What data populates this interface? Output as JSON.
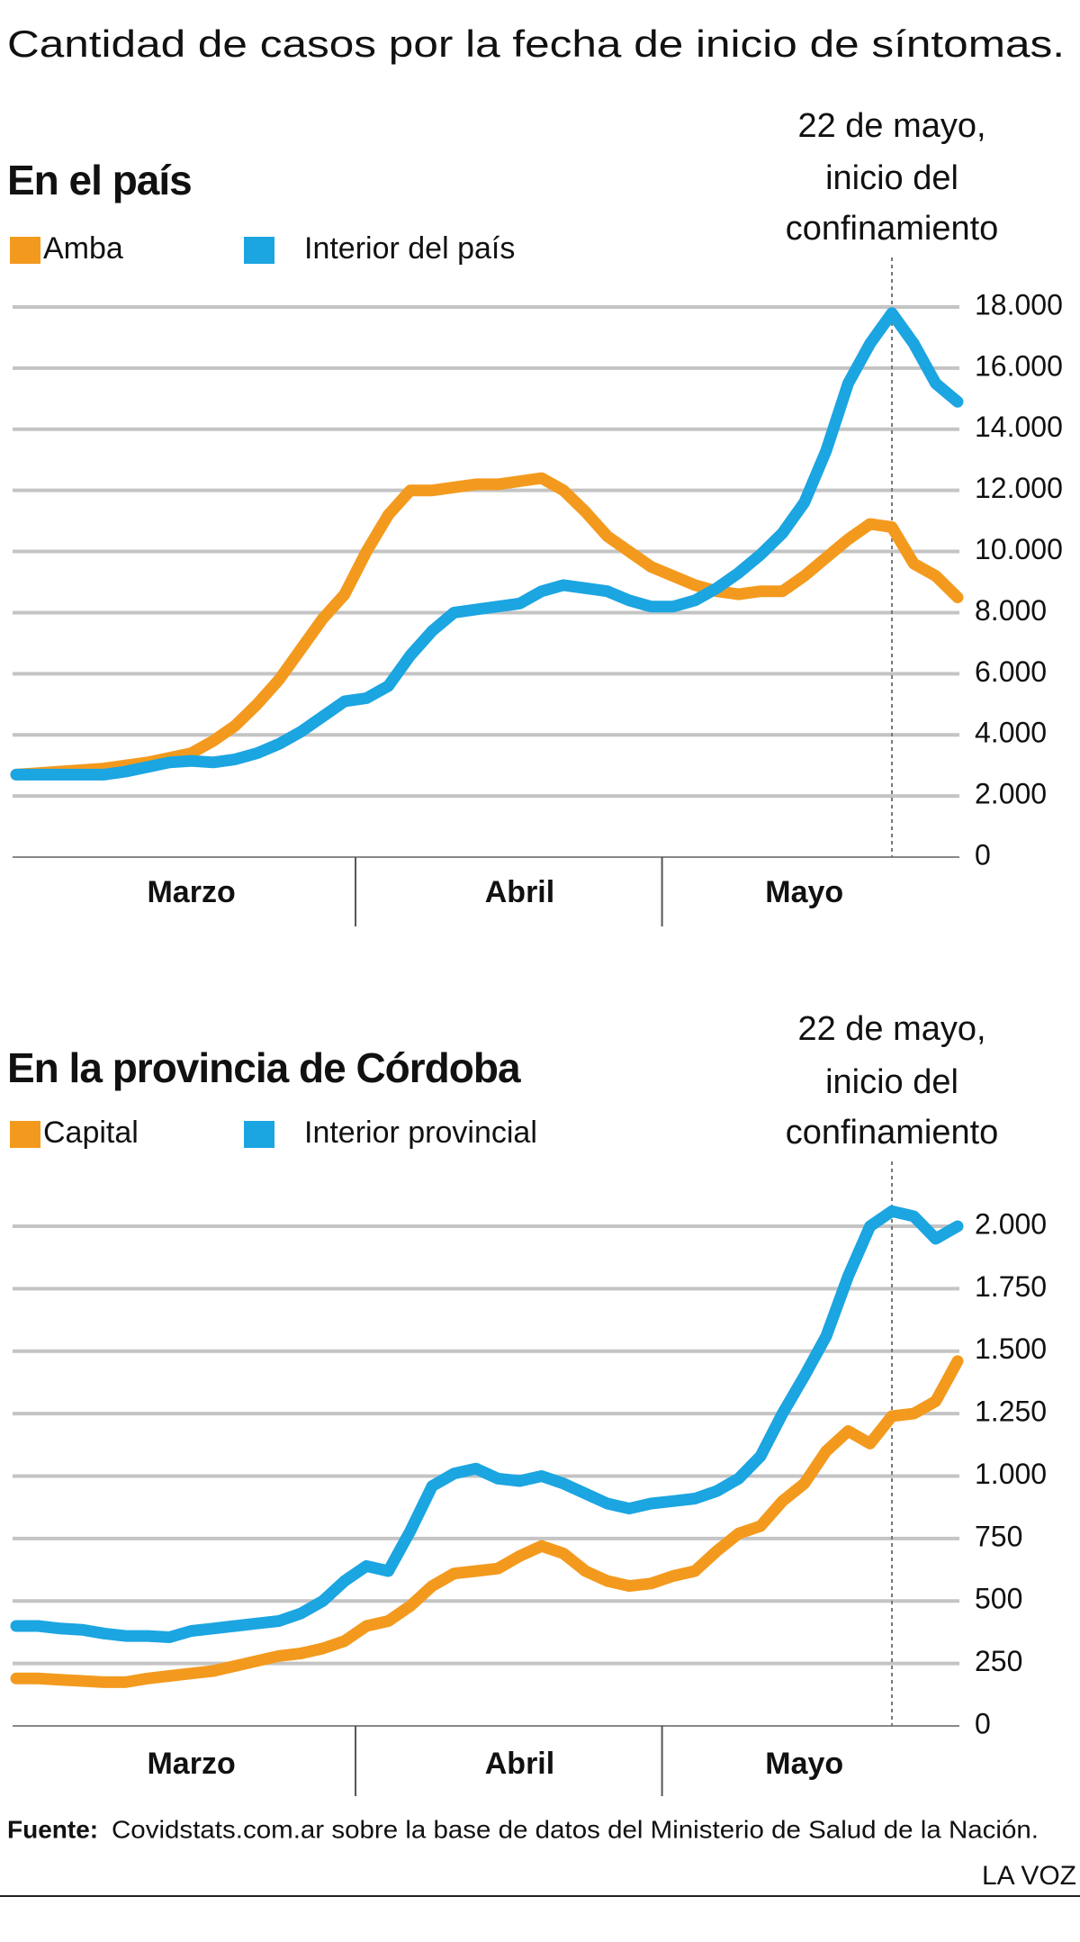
{
  "title": "Cantidad de casos por la fecha de inicio de síntomas.",
  "source_label": "Fuente:",
  "source_text": "Covidstats.com.ar sobre la base de datos del Ministerio de Salud de la Nación.",
  "credit": "LA VOZ",
  "chart_data": [
    {
      "type": "line",
      "title": "En el país",
      "categories": [
        null,
        null,
        null,
        null,
        null,
        null,
        null,
        null,
        "Marzo",
        null,
        null,
        null,
        null,
        null,
        null,
        null,
        null,
        null,
        null,
        null,
        null,
        null,
        null,
        "Abril",
        null,
        null,
        null,
        null,
        null,
        null,
        null,
        null,
        null,
        null,
        null,
        null,
        "Mayo",
        null,
        null,
        null,
        null,
        null,
        null,
        null
      ],
      "series": [
        {
          "name": "Amba",
          "color": "#f39a1e",
          "values": [
            2700,
            2750,
            2800,
            2850,
            2900,
            3000,
            3100,
            3250,
            3400,
            3800,
            4300,
            5000,
            5800,
            6800,
            7800,
            8600,
            10000,
            11200,
            12000,
            12000,
            12100,
            12200,
            12200,
            12300,
            12400,
            12000,
            11300,
            10500,
            10000,
            9500,
            9200,
            8900,
            8700,
            8600,
            8700,
            8700,
            9200,
            9800,
            10400,
            10900,
            10800,
            9600,
            9200,
            8500
          ]
        },
        {
          "name": "Interior del país",
          "color": "#1ba5e1",
          "values": [
            2700,
            2700,
            2700,
            2700,
            2700,
            2800,
            2950,
            3100,
            3150,
            3100,
            3200,
            3400,
            3700,
            4100,
            4600,
            5100,
            5200,
            5600,
            6600,
            7400,
            8000,
            8100,
            8200,
            8300,
            8700,
            8900,
            8800,
            8700,
            8400,
            8200,
            8200,
            8400,
            8800,
            9300,
            9900,
            10600,
            11600,
            13300,
            15500,
            16800,
            17800,
            16800,
            15500,
            14900
          ]
        }
      ],
      "ylim": [
        0,
        18000
      ],
      "yticks": [
        0,
        {
          "value": 2000,
          "label": "2.000"
        },
        {
          "value": 4000,
          "label": "4.000"
        },
        {
          "value": 6000,
          "label": "6.000"
        },
        {
          "value": 8000,
          "label": "8.000"
        },
        {
          "value": 10000,
          "label": "10.000"
        },
        {
          "value": 12000,
          "label": "12.000"
        },
        {
          "value": 14000,
          "label": "14.000"
        },
        {
          "value": 16000,
          "label": "16.000"
        },
        {
          "value": 18000,
          "label": "18.000"
        }
      ],
      "grid": true,
      "annotation": {
        "lines": [
          "22 de mayo,",
          "inicio del",
          "confinamiento"
        ],
        "at": 40
      }
    },
    {
      "type": "line",
      "title": "En la provincia de Córdoba",
      "categories": [
        null,
        null,
        null,
        null,
        null,
        null,
        null,
        null,
        "Marzo",
        null,
        null,
        null,
        null,
        null,
        null,
        null,
        null,
        null,
        null,
        null,
        null,
        null,
        null,
        "Abril",
        null,
        null,
        null,
        null,
        null,
        null,
        null,
        null,
        null,
        null,
        null,
        null,
        "Mayo",
        null,
        null,
        null,
        null,
        null,
        null,
        null
      ],
      "series": [
        {
          "name": "Capital",
          "color": "#f39a1e",
          "values": [
            190,
            190,
            185,
            180,
            175,
            175,
            190,
            200,
            210,
            220,
            240,
            260,
            280,
            290,
            310,
            340,
            400,
            420,
            480,
            560,
            610,
            620,
            630,
            680,
            720,
            690,
            620,
            580,
            560,
            570,
            600,
            620,
            700,
            770,
            800,
            900,
            970,
            1100,
            1180,
            1130,
            1240,
            1250,
            1300,
            1460
          ]
        },
        {
          "name": "Interior provincial",
          "color": "#1ba5e1",
          "values": [
            400,
            400,
            390,
            385,
            370,
            360,
            360,
            355,
            380,
            390,
            400,
            410,
            420,
            450,
            500,
            580,
            640,
            620,
            780,
            960,
            1010,
            1030,
            990,
            980,
            1000,
            970,
            930,
            890,
            870,
            890,
            900,
            910,
            940,
            990,
            1080,
            1250,
            1400,
            1560,
            1800,
            2000,
            2060,
            2040,
            1950,
            2000
          ]
        }
      ],
      "ylim": [
        0,
        2000
      ],
      "yticks": [
        0,
        250,
        500,
        750,
        {
          "value": 1000,
          "label": "1.000"
        },
        {
          "value": 1250,
          "label": "1.250"
        },
        {
          "value": 1500,
          "label": "1.500"
        },
        {
          "value": 1750,
          "label": "1.750"
        },
        {
          "value": 2000,
          "label": "2.000"
        }
      ],
      "grid": true,
      "annotation": {
        "lines": [
          "22 de mayo,",
          "inicio del",
          "confinamiento"
        ],
        "at": 40
      }
    }
  ]
}
